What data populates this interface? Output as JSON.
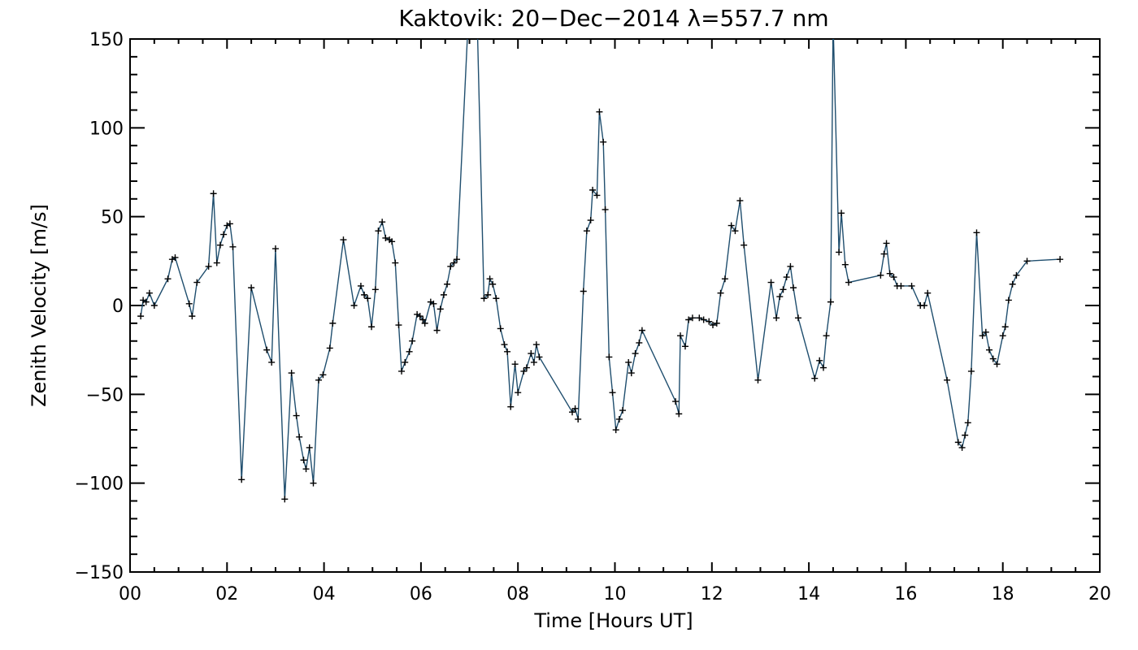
{
  "chart_data": {
    "type": "line",
    "title": "Kaktovik: 20−Dec−2014 λ=557.7 nm",
    "xlabel": "Time [Hours UT]",
    "ylabel": "Zenith Velocity [m/s]",
    "xlim": [
      0,
      20
    ],
    "ylim": [
      -150,
      150
    ],
    "x_ticks": [
      {
        "value": 0,
        "label": "00"
      },
      {
        "value": 2,
        "label": "02"
      },
      {
        "value": 4,
        "label": "04"
      },
      {
        "value": 6,
        "label": "06"
      },
      {
        "value": 8,
        "label": "08"
      },
      {
        "value": 10,
        "label": "10"
      },
      {
        "value": 12,
        "label": "12"
      },
      {
        "value": 14,
        "label": "14"
      },
      {
        "value": 16,
        "label": "16"
      },
      {
        "value": 18,
        "label": "18"
      },
      {
        "value": 20,
        "label": "20"
      }
    ],
    "y_ticks": [
      {
        "value": -150,
        "label": "−150"
      },
      {
        "value": -100,
        "label": "−100"
      },
      {
        "value": -50,
        "label": "−50"
      },
      {
        "value": 0,
        "label": "0"
      },
      {
        "value": 50,
        "label": "50"
      },
      {
        "value": 100,
        "label": "100"
      },
      {
        "value": 150,
        "label": "150"
      }
    ],
    "grid": false,
    "line_color": "#1f4e6e",
    "marker": "plus",
    "marker_color": "#000000",
    "series": [
      {
        "points": [
          [
            0.22,
            -6
          ],
          [
            0.27,
            3
          ],
          [
            0.33,
            2
          ],
          [
            0.4,
            7
          ],
          [
            0.5,
            0
          ],
          [
            0.78,
            15
          ],
          [
            0.87,
            26
          ],
          [
            0.93,
            27
          ],
          [
            1.22,
            1
          ],
          [
            1.28,
            -6
          ],
          [
            1.38,
            13
          ],
          [
            1.62,
            22
          ],
          [
            1.72,
            63
          ],
          [
            1.79,
            24
          ],
          [
            1.86,
            34
          ],
          [
            1.93,
            40
          ],
          [
            2.0,
            45
          ],
          [
            2.06,
            46
          ],
          [
            2.12,
            33
          ],
          [
            2.3,
            -98
          ],
          [
            2.5,
            10
          ],
          [
            2.82,
            -25
          ],
          [
            2.92,
            -32
          ],
          [
            3.0,
            32
          ],
          [
            3.19,
            -109
          ],
          [
            3.33,
            -38
          ],
          [
            3.43,
            -62
          ],
          [
            3.49,
            -74
          ],
          [
            3.58,
            -87
          ],
          [
            3.63,
            -92
          ],
          [
            3.7,
            -80
          ],
          [
            3.78,
            -100
          ],
          [
            3.89,
            -42
          ],
          [
            3.98,
            -39
          ],
          [
            4.12,
            -24
          ],
          [
            4.18,
            -10
          ],
          [
            4.4,
            37
          ],
          [
            4.62,
            0
          ],
          [
            4.76,
            11
          ],
          [
            4.83,
            6
          ],
          [
            4.9,
            4
          ],
          [
            4.98,
            -12
          ],
          [
            5.06,
            9
          ],
          [
            5.12,
            42
          ],
          [
            5.2,
            47
          ],
          [
            5.27,
            38
          ],
          [
            5.35,
            37
          ],
          [
            5.4,
            36
          ],
          [
            5.47,
            24
          ],
          [
            5.54,
            -11
          ],
          [
            5.6,
            -37
          ],
          [
            5.67,
            -32
          ],
          [
            5.76,
            -26
          ],
          [
            5.82,
            -20
          ],
          [
            5.92,
            -5
          ],
          [
            5.98,
            -6
          ],
          [
            6.04,
            -8
          ],
          [
            6.08,
            -10
          ],
          [
            6.2,
            2
          ],
          [
            6.26,
            1
          ],
          [
            6.33,
            -14
          ],
          [
            6.4,
            -2
          ],
          [
            6.47,
            6
          ],
          [
            6.54,
            12
          ],
          [
            6.61,
            22
          ],
          [
            6.68,
            24
          ],
          [
            6.74,
            26
          ],
          [
            7.0,
            175
          ],
          [
            7.16,
            160
          ],
          [
            7.3,
            4
          ],
          [
            7.38,
            6
          ],
          [
            7.42,
            15
          ],
          [
            7.48,
            12
          ],
          [
            7.55,
            4
          ],
          [
            7.64,
            -13
          ],
          [
            7.72,
            -22
          ],
          [
            7.78,
            -26
          ],
          [
            7.85,
            -57
          ],
          [
            7.94,
            -33
          ],
          [
            8.0,
            -49
          ],
          [
            8.12,
            -37
          ],
          [
            8.18,
            -35
          ],
          [
            8.27,
            -27
          ],
          [
            8.33,
            -32
          ],
          [
            8.38,
            -22
          ],
          [
            8.44,
            -29
          ],
          [
            9.12,
            -60
          ],
          [
            9.18,
            -58
          ],
          [
            9.24,
            -64
          ],
          [
            9.35,
            8
          ],
          [
            9.42,
            42
          ],
          [
            9.5,
            48
          ],
          [
            9.54,
            65
          ],
          [
            9.63,
            62
          ],
          [
            9.68,
            109
          ],
          [
            9.76,
            92
          ],
          [
            9.8,
            54
          ],
          [
            9.88,
            -29
          ],
          [
            9.95,
            -49
          ],
          [
            10.02,
            -70
          ],
          [
            10.09,
            -64
          ],
          [
            10.16,
            -59
          ],
          [
            10.28,
            -32
          ],
          [
            10.34,
            -38
          ],
          [
            10.42,
            -27
          ],
          [
            10.5,
            -21
          ],
          [
            10.56,
            -14
          ],
          [
            11.25,
            -54
          ],
          [
            11.32,
            -61
          ],
          [
            11.35,
            -17
          ],
          [
            11.45,
            -23
          ],
          [
            11.52,
            -8
          ],
          [
            11.6,
            -7
          ],
          [
            11.74,
            -7
          ],
          [
            11.83,
            -8
          ],
          [
            11.94,
            -9
          ],
          [
            12.02,
            -11
          ],
          [
            12.1,
            -10
          ],
          [
            12.18,
            7
          ],
          [
            12.27,
            15
          ],
          [
            12.4,
            45
          ],
          [
            12.48,
            42
          ],
          [
            12.58,
            59
          ],
          [
            12.66,
            34
          ],
          [
            12.95,
            -42
          ],
          [
            13.22,
            13
          ],
          [
            13.33,
            -7
          ],
          [
            13.4,
            5
          ],
          [
            13.47,
            9
          ],
          [
            13.54,
            16
          ],
          [
            13.62,
            22
          ],
          [
            13.68,
            10
          ],
          [
            13.78,
            -7
          ],
          [
            14.12,
            -41
          ],
          [
            14.22,
            -31
          ],
          [
            14.3,
            -35
          ],
          [
            14.36,
            -17
          ],
          [
            14.45,
            2
          ],
          [
            14.5,
            160
          ],
          [
            14.62,
            30
          ],
          [
            14.67,
            52
          ],
          [
            14.75,
            23
          ],
          [
            14.82,
            13
          ],
          [
            15.48,
            17
          ],
          [
            15.55,
            29
          ],
          [
            15.6,
            35
          ],
          [
            15.67,
            18
          ],
          [
            15.75,
            16
          ],
          [
            15.82,
            11
          ],
          [
            15.9,
            11
          ],
          [
            16.12,
            11
          ],
          [
            16.3,
            0
          ],
          [
            16.38,
            0
          ],
          [
            16.45,
            7
          ],
          [
            16.85,
            -42
          ],
          [
            17.08,
            -77
          ],
          [
            17.16,
            -80
          ],
          [
            17.22,
            -73
          ],
          [
            17.28,
            -66
          ],
          [
            17.35,
            -37
          ],
          [
            17.46,
            41
          ],
          [
            17.58,
            -17
          ],
          [
            17.65,
            -15
          ],
          [
            17.72,
            -25
          ],
          [
            17.8,
            -30
          ],
          [
            17.88,
            -33
          ],
          [
            18.0,
            -17
          ],
          [
            18.05,
            -12
          ],
          [
            18.12,
            3
          ],
          [
            18.2,
            12
          ],
          [
            18.28,
            17
          ],
          [
            18.5,
            25
          ],
          [
            19.18,
            26
          ]
        ]
      }
    ]
  }
}
